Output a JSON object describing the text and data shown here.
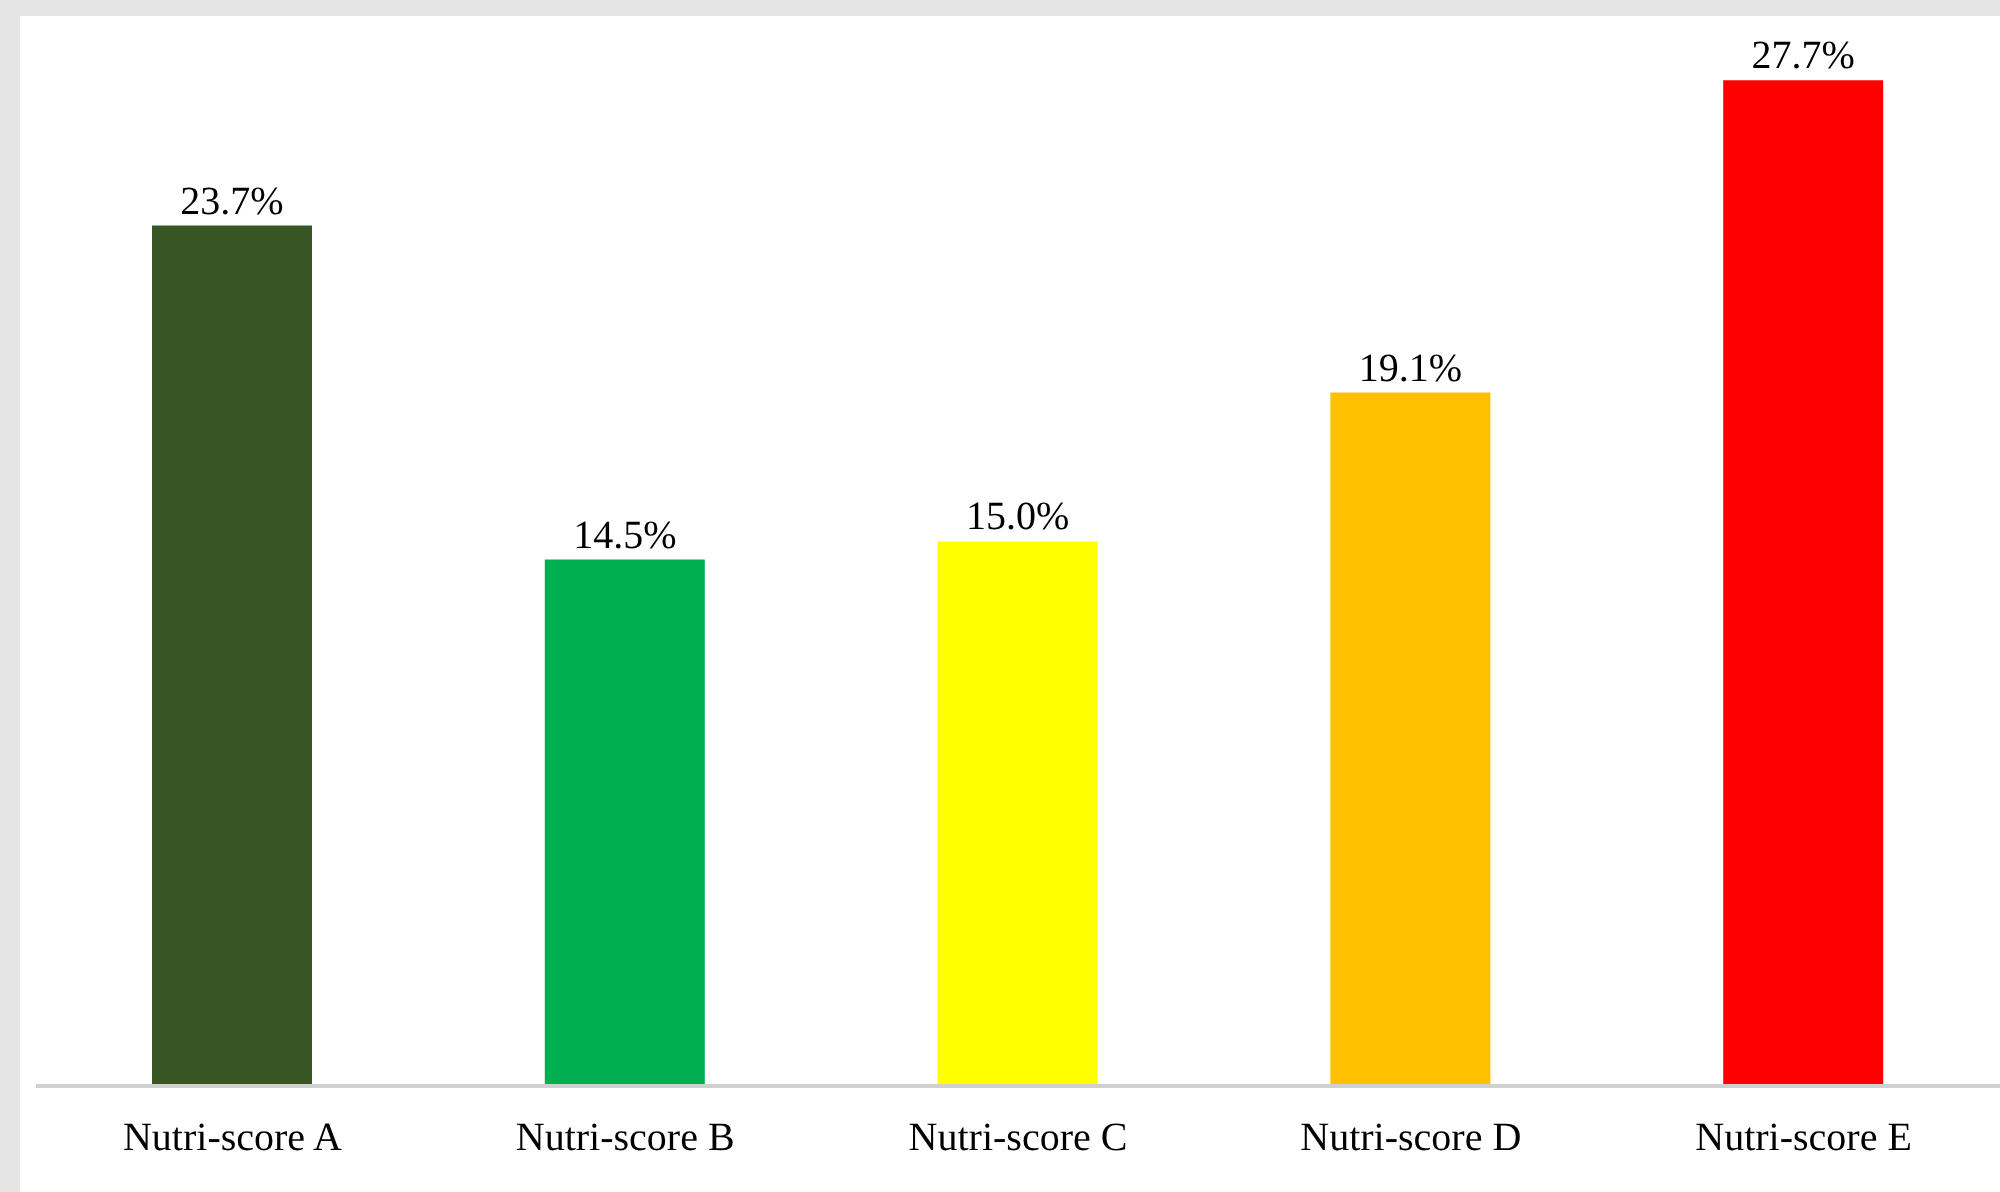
{
  "chart_data": {
    "type": "bar",
    "categories": [
      "Nutri-score A",
      "Nutri-score B",
      "Nutri-score C",
      "Nutri-score D",
      "Nutri-score E"
    ],
    "values": [
      23.7,
      14.5,
      15.0,
      19.1,
      27.7
    ],
    "colors": [
      "#375623",
      "#00b050",
      "#ffff00",
      "#ffc000",
      "#ff0000"
    ],
    "value_labels": [
      "23.7%",
      "14.5%",
      "15.0%",
      "19.1%",
      "27.7%"
    ],
    "grid": false,
    "legend": false
  }
}
